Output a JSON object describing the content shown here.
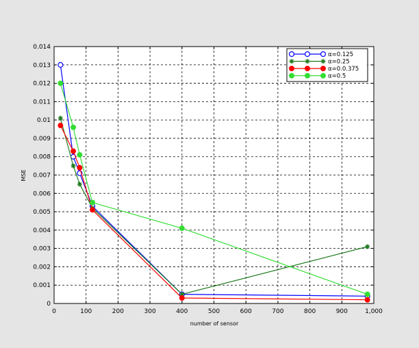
{
  "chart_data": {
    "type": "line",
    "title": "",
    "xlabel": "number of sensor",
    "ylabel": "MSE",
    "xlim": [
      0,
      1000
    ],
    "ylim": [
      0,
      0.014
    ],
    "xticks": [
      0,
      100,
      200,
      300,
      400,
      500,
      600,
      700,
      800,
      900,
      1000
    ],
    "xtick_labels": [
      "0",
      "100",
      "200",
      "300",
      "400",
      "500",
      "600",
      "700",
      "800",
      "900",
      "1,000"
    ],
    "yticks": [
      0,
      0.001,
      0.002,
      0.003,
      0.004,
      0.005,
      0.006,
      0.007,
      0.008,
      0.009,
      0.01,
      0.011,
      0.012,
      0.013,
      0.014
    ],
    "ytick_labels": [
      "0",
      "0.001",
      "0.002",
      "0.003",
      "0.004",
      "0.005",
      "0.006",
      "0.007",
      "0.008",
      "0.009",
      "0.01",
      "0.011",
      "0.012",
      "0.013",
      "0.014"
    ],
    "grid": true,
    "legend_position": "top-right",
    "series": [
      {
        "name": "α=0.125",
        "color": "#0000ff",
        "marker": "open-circle",
        "x": [
          20,
          60,
          80,
          120,
          400,
          980
        ],
        "y": [
          0.013,
          0.008,
          0.0071,
          0.0053,
          0.0005,
          0.0004
        ]
      },
      {
        "name": "α=0.25",
        "color": "#1f7a1f",
        "marker": "asterisk",
        "x": [
          20,
          60,
          80,
          120,
          400,
          980
        ],
        "y": [
          0.0101,
          0.0075,
          0.0065,
          0.0052,
          0.0005,
          0.0031
        ]
      },
      {
        "name": "α=0.0.375",
        "color": "#ff0000",
        "marker": "filled-circle",
        "x": [
          20,
          60,
          80,
          120,
          400,
          980
        ],
        "y": [
          0.0097,
          0.0083,
          0.0074,
          0.0051,
          0.0003,
          0.0002
        ]
      },
      {
        "name": "α=0.5",
        "color": "#33dd33",
        "marker": "filled-circle",
        "x": [
          20,
          60,
          80,
          120,
          400,
          980
        ],
        "y": [
          0.012,
          0.0096,
          0.0081,
          0.0055,
          0.0041,
          0.0005
        ]
      }
    ]
  }
}
